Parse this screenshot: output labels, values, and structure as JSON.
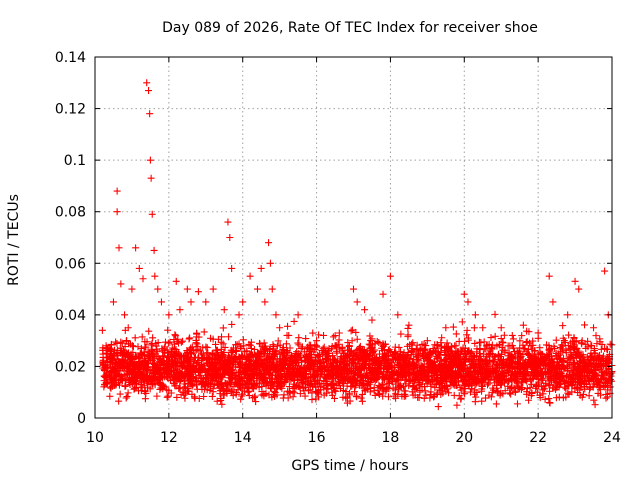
{
  "chart_data": {
    "type": "scatter",
    "title": "Day 089 of 2026, Rate Of TEC Index for receiver shoe",
    "xlabel": "GPS time / hours",
    "ylabel": "ROTI / TECUs",
    "xlim": [
      10,
      24
    ],
    "ylim": [
      0,
      0.14
    ],
    "x_ticks": [
      10,
      12,
      14,
      16,
      18,
      20,
      22,
      24
    ],
    "x_tick_labels": [
      "10",
      "12",
      "14",
      "16",
      "18",
      "20",
      "22",
      "24"
    ],
    "y_ticks": [
      0,
      0.02,
      0.04,
      0.06,
      0.08,
      0.1,
      0.12,
      0.14
    ],
    "y_tick_labels": [
      "0",
      "0.02",
      "0.04",
      "0.06",
      "0.08",
      "0.1",
      "0.12",
      "0.14"
    ],
    "grid": true,
    "marker": "+",
    "color": "#ff0000",
    "series": [
      {
        "name": "ROTI",
        "x": [
          10.2,
          10.3,
          10.5,
          10.6,
          10.6,
          10.65,
          10.7,
          10.8,
          10.9,
          11.0,
          11.1,
          11.2,
          11.3,
          11.4,
          11.45,
          11.48,
          11.5,
          11.52,
          11.55,
          11.6,
          11.62,
          11.7,
          11.8,
          12.0,
          12.2,
          12.3,
          12.5,
          12.6,
          12.8,
          13.0,
          13.2,
          13.5,
          13.6,
          13.65,
          13.7,
          13.9,
          14.0,
          14.2,
          14.4,
          14.5,
          14.6,
          14.7,
          14.75,
          14.8,
          14.9,
          15.0,
          15.2,
          15.5,
          16.0,
          16.5,
          17.0,
          17.1,
          17.3,
          17.5,
          17.8,
          18.0,
          18.2,
          18.5,
          19.0,
          19.5,
          20.0,
          20.1,
          20.3,
          20.5,
          21.0,
          21.3,
          21.6,
          22.0,
          22.3,
          22.4,
          22.8,
          23.0,
          23.1,
          23.5,
          23.8,
          23.9
        ],
        "y": [
          0.034,
          0.028,
          0.045,
          0.088,
          0.08,
          0.066,
          0.052,
          0.04,
          0.035,
          0.05,
          0.066,
          0.058,
          0.054,
          0.13,
          0.127,
          0.118,
          0.1,
          0.093,
          0.079,
          0.065,
          0.055,
          0.05,
          0.045,
          0.04,
          0.053,
          0.042,
          0.05,
          0.045,
          0.049,
          0.045,
          0.05,
          0.042,
          0.076,
          0.07,
          0.058,
          0.04,
          0.045,
          0.055,
          0.05,
          0.058,
          0.045,
          0.068,
          0.06,
          0.05,
          0.04,
          0.035,
          0.032,
          0.04,
          0.03,
          0.028,
          0.05,
          0.045,
          0.042,
          0.038,
          0.048,
          0.055,
          0.04,
          0.036,
          0.03,
          0.035,
          0.048,
          0.045,
          0.04,
          0.035,
          0.035,
          0.032,
          0.036,
          0.033,
          0.055,
          0.045,
          0.04,
          0.053,
          0.05,
          0.035,
          0.057,
          0.04
        ]
      }
    ]
  }
}
